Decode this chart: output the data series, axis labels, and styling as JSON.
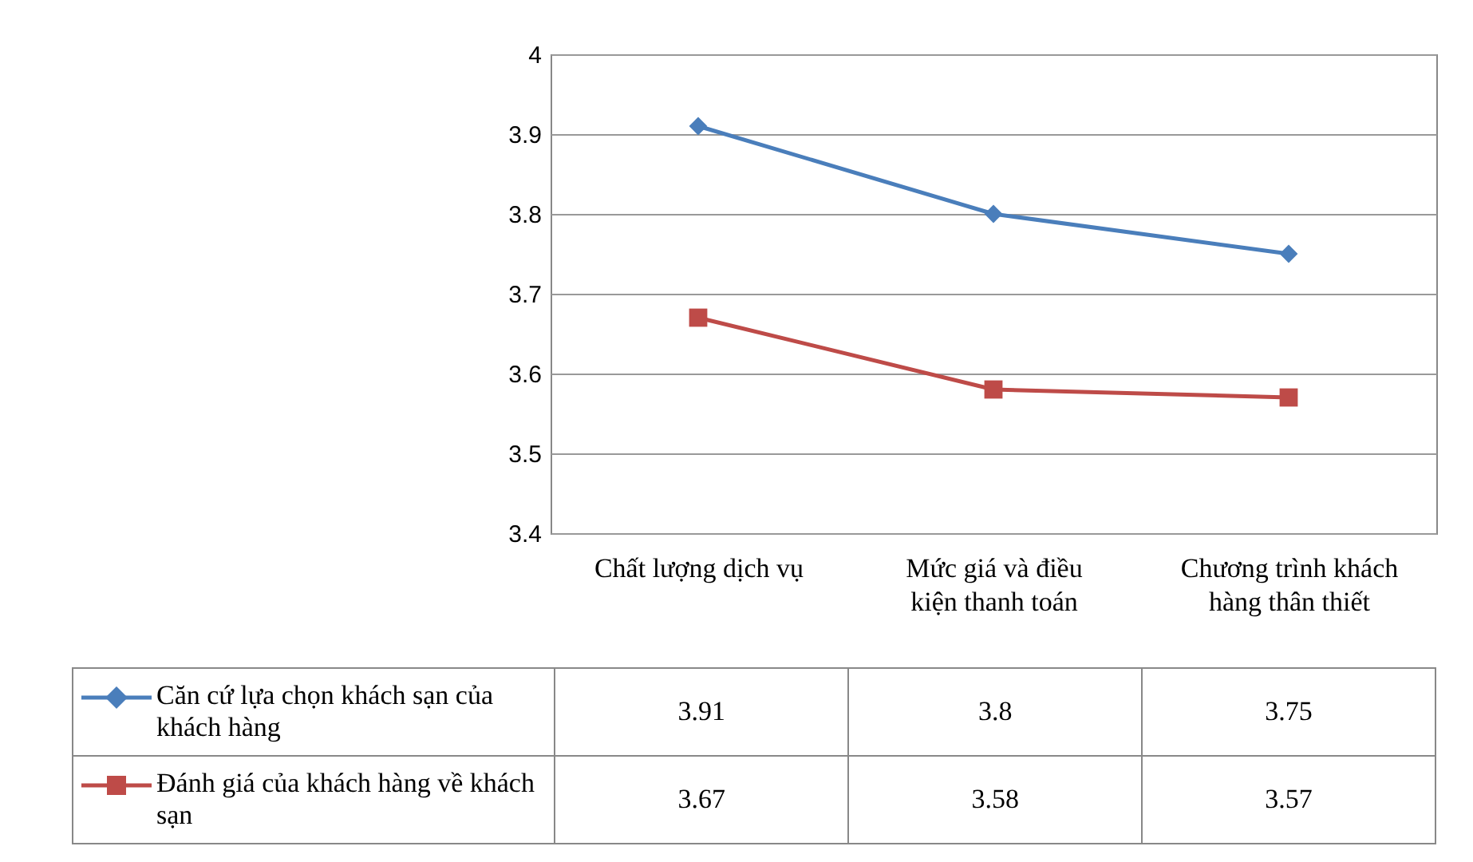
{
  "chart_data": {
    "type": "line",
    "categories": [
      "Chất lượng dịch vụ",
      "Mức giá và điều kiện thanh toán",
      "Chương trình khách hàng thân thiết"
    ],
    "series": [
      {
        "name": "Căn cứ lựa chọn khách sạn của khách hàng",
        "color": "#4a7ebb",
        "marker": "diamond",
        "values": [
          3.91,
          3.8,
          3.75
        ]
      },
      {
        "name": "Đánh giá của khách hàng về khách sạn",
        "color": "#be4b48",
        "marker": "square",
        "values": [
          3.67,
          3.58,
          3.57
        ]
      }
    ],
    "ylim": [
      3.4,
      4
    ],
    "yticks": [
      3.4,
      3.5,
      3.6,
      3.7,
      3.8,
      3.9,
      4
    ],
    "grid": "y",
    "legend": "bottom",
    "data_labels": true,
    "line_style": "solid"
  }
}
